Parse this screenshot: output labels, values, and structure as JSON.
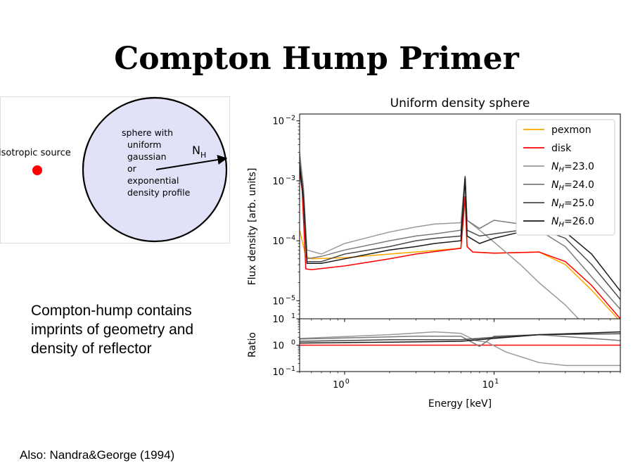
{
  "slide": {
    "title": "Compton Hump Primer",
    "body_lines": [
      "Compton-hump contains",
      "imprints of geometry and",
      "density of reflector"
    ],
    "footnote": "Also: Nandra&George (1994)"
  },
  "diagram": {
    "source_label": "isotropic source",
    "sphere_lines": [
      "sphere with",
      "uniform",
      "gaussian",
      "or",
      "exponential",
      "density profile"
    ],
    "nh_label": "N",
    "nh_sub": "H",
    "colors": {
      "sphere_fill": "#e1e1f7",
      "source": "#ff0000"
    }
  },
  "chart_data": {
    "type": "line",
    "title": "Uniform density sphere",
    "xlabel": "Energy [keV]",
    "x_scale": "log",
    "xlim": [
      0.5,
      70
    ],
    "x_ticks": [
      {
        "value": 1,
        "base": "10",
        "exp": "0"
      },
      {
        "value": 10,
        "base": "10",
        "exp": "1"
      }
    ],
    "legend_position": "top-right",
    "top_panel": {
      "ylabel": "Flux density [arb. units]",
      "y_scale": "log",
      "ylim": [
        5e-06,
        0.013
      ],
      "y_ticks": [
        {
          "value": 0.01,
          "base": "10",
          "exp": "−2"
        },
        {
          "value": 0.001,
          "base": "10",
          "exp": "−3"
        },
        {
          "value": 0.0001,
          "base": "10",
          "exp": "−4"
        },
        {
          "value": 1e-05,
          "base": "10",
          "exp": "−5"
        }
      ],
      "series": [
        {
          "name": "pexmon",
          "color": "#ffa500",
          "points": [
            [
              0.5,
              0.00015
            ],
            [
              0.55,
              5.5e-05
            ],
            [
              0.6,
              5e-05
            ],
            [
              1.0,
              5.2e-05
            ],
            [
              2,
              6e-05
            ],
            [
              3,
              6.5e-05
            ],
            [
              6,
              7.5e-05
            ],
            [
              6.4,
              0.0005
            ],
            [
              6.6,
              8e-05
            ],
            [
              7.2,
              6.5e-05
            ],
            [
              10,
              6.2e-05
            ],
            [
              20,
              6.5e-05
            ],
            [
              30,
              4e-05
            ],
            [
              45,
              1.5e-05
            ],
            [
              70,
              4.5e-06
            ]
          ]
        },
        {
          "name": "disk",
          "color": "#ff0000",
          "points": [
            [
              0.5,
              0.0014
            ],
            [
              0.52,
              0.0007
            ],
            [
              0.55,
              3.4e-05
            ],
            [
              0.6,
              3.3e-05
            ],
            [
              1.0,
              3.8e-05
            ],
            [
              2,
              5e-05
            ],
            [
              3,
              6e-05
            ],
            [
              6,
              7.5e-05
            ],
            [
              6.4,
              0.00055
            ],
            [
              6.6,
              8e-05
            ],
            [
              7.2,
              6.5e-05
            ],
            [
              10,
              6.2e-05
            ],
            [
              20,
              6.5e-05
            ],
            [
              30,
              4.5e-05
            ],
            [
              45,
              1.8e-05
            ],
            [
              70,
              5e-06
            ]
          ]
        },
        {
          "name": "$N_H$=23.0",
          "label_sub": "H",
          "label_rest": "=23.0",
          "color": "#9a9a9a",
          "points": [
            [
              0.5,
              0.003
            ],
            [
              0.53,
              0.0008
            ],
            [
              0.56,
              7e-05
            ],
            [
              0.7,
              6e-05
            ],
            [
              1,
              9e-05
            ],
            [
              2,
              0.00014
            ],
            [
              3,
              0.00017
            ],
            [
              4,
              0.00019
            ],
            [
              6,
              0.0002
            ],
            [
              6.4,
              0.0012
            ],
            [
              6.6,
              0.00022
            ],
            [
              8,
              0.00015
            ],
            [
              10,
              9.5e-05
            ],
            [
              15,
              4e-05
            ],
            [
              20,
              2e-05
            ],
            [
              30,
              8.5e-06
            ],
            [
              42,
              3.5e-06
            ]
          ]
        },
        {
          "name": "$N_H$=24.0",
          "label_sub": "H",
          "label_rest": "=24.0",
          "color": "#7a7a7a",
          "points": [
            [
              0.5,
              0.0025
            ],
            [
              0.53,
              0.0007
            ],
            [
              0.56,
              5e-05
            ],
            [
              0.7,
              5.5e-05
            ],
            [
              1,
              7e-05
            ],
            [
              2,
              0.0001
            ],
            [
              3,
              0.00012
            ],
            [
              4,
              0.00013
            ],
            [
              6,
              0.00015
            ],
            [
              6.4,
              0.0012
            ],
            [
              6.6,
              0.00022
            ],
            [
              8,
              0.00016
            ],
            [
              10,
              0.00022
            ],
            [
              15,
              0.00019
            ],
            [
              20,
              0.00015
            ],
            [
              30,
              8e-05
            ],
            [
              45,
              2.5e-05
            ],
            [
              70,
              7.2e-06
            ]
          ]
        },
        {
          "name": "$N_H$=25.0",
          "label_sub": "H",
          "label_rest": "=25.0",
          "color": "#4a4a4a",
          "points": [
            [
              0.5,
              0.002
            ],
            [
              0.53,
              0.0006
            ],
            [
              0.56,
              4.5e-05
            ],
            [
              0.7,
              4.5e-05
            ],
            [
              1,
              6e-05
            ],
            [
              2,
              8e-05
            ],
            [
              3,
              0.0001
            ],
            [
              4,
              0.00011
            ],
            [
              6,
              0.00012
            ],
            [
              6.4,
              0.0012
            ],
            [
              6.6,
              0.00015
            ],
            [
              8,
              0.00012
            ],
            [
              10,
              0.00013
            ],
            [
              15,
              0.00015
            ],
            [
              20,
              0.00016
            ],
            [
              30,
              0.00011
            ],
            [
              45,
              4e-05
            ],
            [
              70,
              1.05e-05
            ]
          ]
        },
        {
          "name": "$N_H$=26.0",
          "label_sub": "H",
          "label_rest": "=26.0",
          "color": "#1a1a1a",
          "points": [
            [
              0.5,
              0.0017
            ],
            [
              0.53,
              0.0005
            ],
            [
              0.56,
              4.2e-05
            ],
            [
              0.7,
              4.2e-05
            ],
            [
              1,
              5e-05
            ],
            [
              2,
              7e-05
            ],
            [
              3,
              8e-05
            ],
            [
              4,
              9e-05
            ],
            [
              6,
              0.0001
            ],
            [
              6.4,
              0.0011
            ],
            [
              6.6,
              0.00012
            ],
            [
              8,
              9e-05
            ],
            [
              10,
              0.00011
            ],
            [
              15,
              0.00014
            ],
            [
              20,
              0.00017
            ],
            [
              30,
              0.00014
            ],
            [
              45,
              6e-05
            ],
            [
              70,
              1.45e-05
            ]
          ]
        }
      ]
    },
    "bottom_panel": {
      "ylabel": "Ratio",
      "y_scale": "log",
      "ylim": [
        0.1,
        10
      ],
      "y_ticks": [
        {
          "value": 10,
          "base": "10",
          "exp": "1"
        },
        {
          "value": 1,
          "base": "10",
          "exp": "0"
        },
        {
          "value": 0.1,
          "base": "10",
          "exp": "−1"
        }
      ],
      "series": [
        {
          "name": "disk",
          "color": "#ff0000",
          "points": [
            [
              0.5,
              1
            ],
            [
              70,
              1
            ]
          ]
        },
        {
          "name": "$N_H$=23.0",
          "color": "#9a9a9a",
          "points": [
            [
              0.5,
              1.8
            ],
            [
              2,
              2.5
            ],
            [
              4,
              3.2
            ],
            [
              6,
              2.8
            ],
            [
              7.5,
              1.5
            ],
            [
              9,
              1.3
            ],
            [
              12,
              0.55
            ],
            [
              20,
              0.22
            ],
            [
              30,
              0.17
            ],
            [
              70,
              0.17
            ]
          ]
        },
        {
          "name": "$N_H$=24.0",
          "color": "#7a7a7a",
          "points": [
            [
              0.5,
              1.7
            ],
            [
              3,
              2.2
            ],
            [
              6,
              2.2
            ],
            [
              8,
              0.9
            ],
            [
              10,
              2.2
            ],
            [
              20,
              2.5
            ],
            [
              70,
              1.5
            ]
          ]
        },
        {
          "name": "$N_H$=25.0",
          "color": "#4a4a4a",
          "points": [
            [
              0.5,
              1.4
            ],
            [
              2,
              1.6
            ],
            [
              6,
              1.6
            ],
            [
              10,
              2
            ],
            [
              20,
              2.5
            ],
            [
              70,
              2.7
            ]
          ]
        },
        {
          "name": "$N_H$=26.0",
          "color": "#1a1a1a",
          "points": [
            [
              0.5,
              1.2
            ],
            [
              2,
              1.3
            ],
            [
              6,
              1.4
            ],
            [
              10,
              1.8
            ],
            [
              20,
              2.5
            ],
            [
              70,
              3.2
            ]
          ]
        }
      ]
    }
  }
}
